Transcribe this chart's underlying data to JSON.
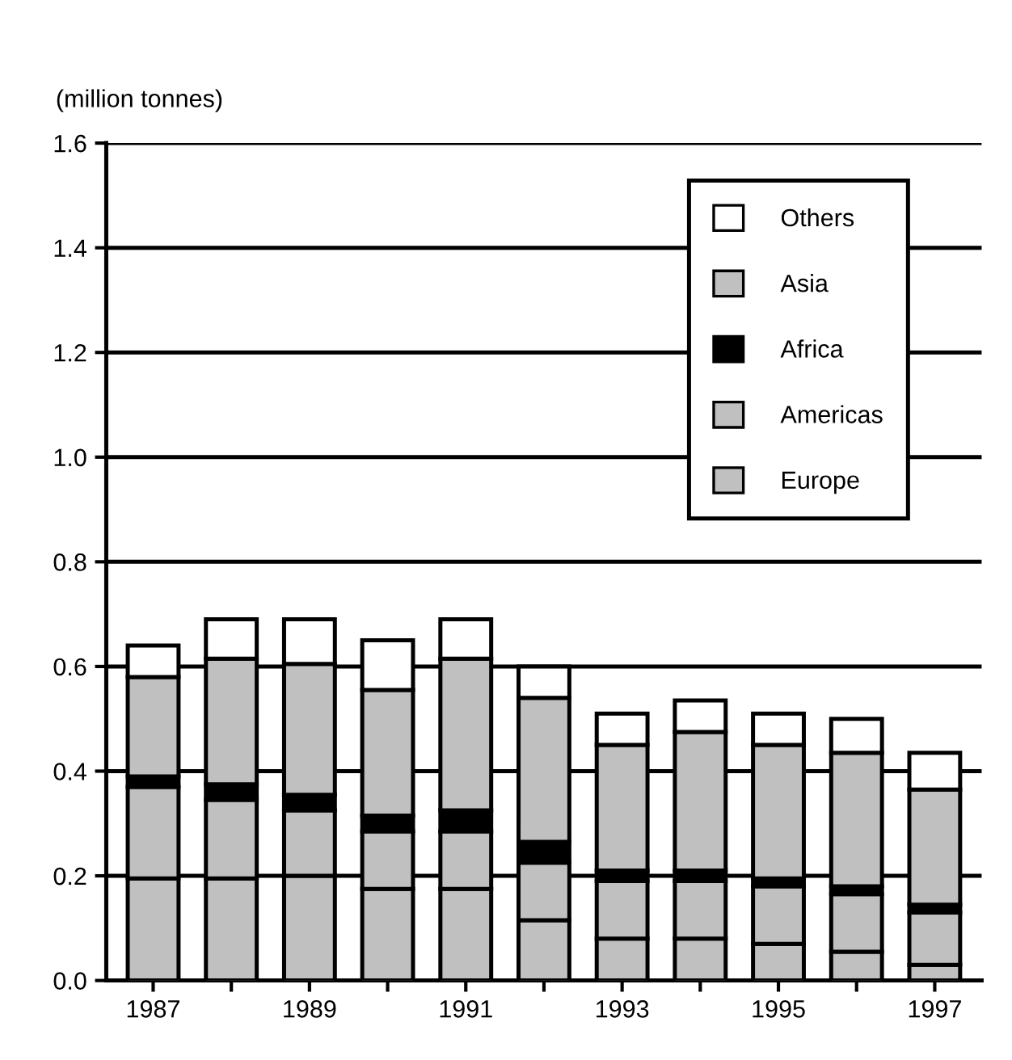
{
  "chart_data": {
    "type": "bar",
    "stacked": true,
    "ylabel": "(million tonnes)",
    "categories": [
      "1987",
      null,
      "1989",
      null,
      "1991",
      null,
      "1993",
      null,
      "1995",
      null,
      "1997"
    ],
    "series": [
      {
        "name": "Europe",
        "color": "#c0c0c0",
        "values": [
          0.195,
          0.195,
          0.2,
          0.175,
          0.175,
          0.115,
          0.08,
          0.08,
          0.07,
          0.055,
          0.03
        ]
      },
      {
        "name": "Americas",
        "color": "#c0c0c0",
        "values": [
          0.175,
          0.15,
          0.125,
          0.11,
          0.11,
          0.11,
          0.11,
          0.11,
          0.11,
          0.11,
          0.1
        ]
      },
      {
        "name": "Africa",
        "color": "#000000",
        "values": [
          0.02,
          0.03,
          0.03,
          0.03,
          0.04,
          0.04,
          0.02,
          0.02,
          0.015,
          0.015,
          0.015
        ]
      },
      {
        "name": "Asia",
        "color": "#c0c0c0",
        "values": [
          0.19,
          0.24,
          0.25,
          0.24,
          0.29,
          0.275,
          0.24,
          0.265,
          0.255,
          0.255,
          0.22
        ]
      },
      {
        "name": "Others",
        "color": "#ffffff",
        "values": [
          0.06,
          0.075,
          0.085,
          0.095,
          0.075,
          0.06,
          0.06,
          0.06,
          0.06,
          0.065,
          0.07
        ]
      }
    ],
    "ylim": [
      0,
      1.6
    ],
    "yticks": [
      {
        "value": 0,
        "label": "0.0"
      },
      0.2,
      0.4,
      0.6,
      0.8,
      {
        "value": 1,
        "label": "1.0"
      },
      1.2,
      1.4,
      1.6
    ],
    "grid": "y",
    "legend": "top right"
  }
}
